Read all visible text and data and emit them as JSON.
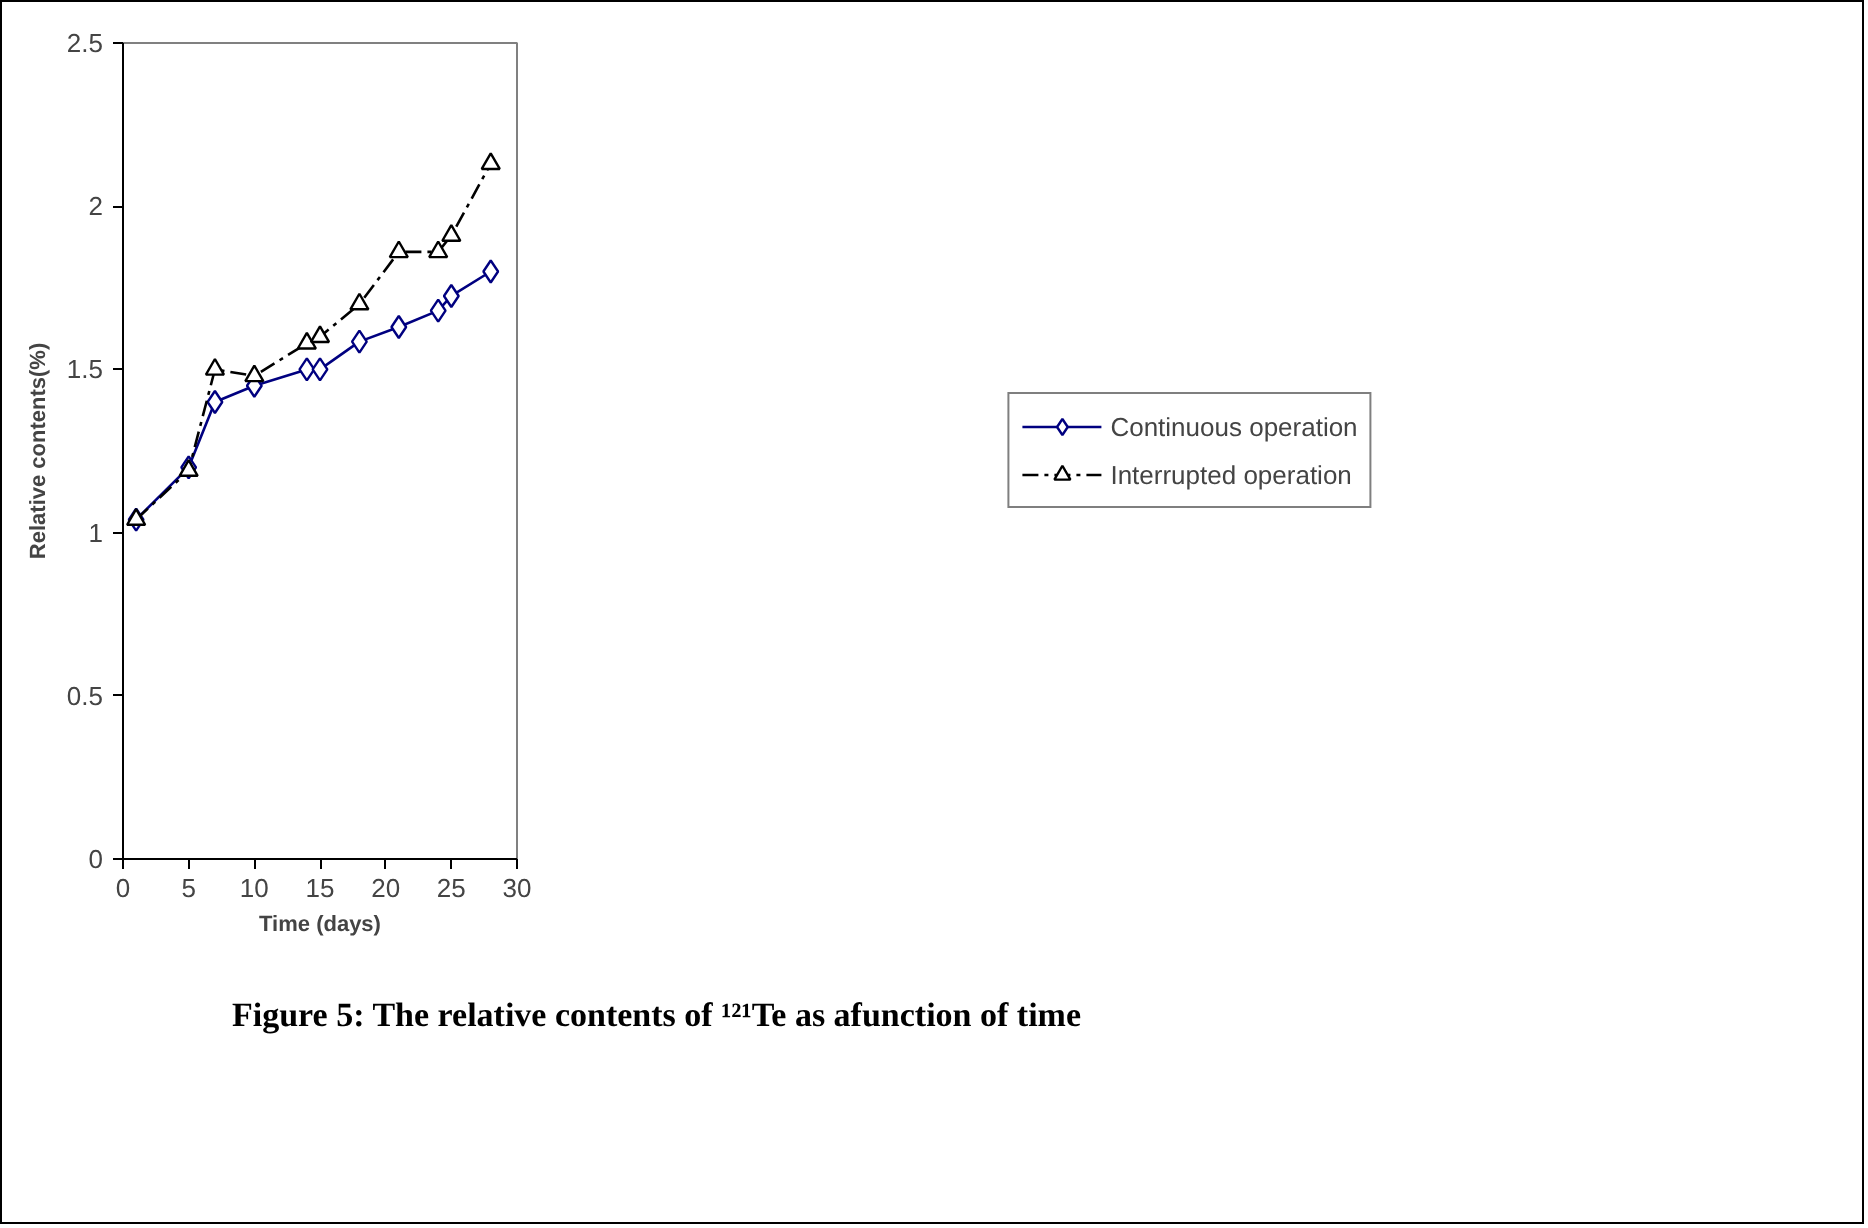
{
  "chart_data": {
    "type": "line",
    "xlabel": "Time (days)",
    "ylabel": "Relative contents(%)",
    "annotations": [
      "Figure 5: The relative contents of ¹²¹Te as afunction of time"
    ],
    "x": [
      1,
      5,
      7,
      10,
      14,
      15,
      18,
      21,
      24,
      25,
      28
    ],
    "series": [
      {
        "name": "Continuous operation",
        "color": "#000080",
        "values": [
          1.04,
          1.2,
          1.4,
          1.45,
          1.5,
          1.5,
          1.585,
          1.63,
          1.68,
          1.725,
          1.8
        ],
        "marker": "diamond",
        "line_style": "solid"
      },
      {
        "name": "Interrupted operation",
        "color": "#000000",
        "values": [
          1.04,
          1.19,
          1.5,
          1.48,
          1.58,
          1.6,
          1.7,
          1.86,
          1.86,
          1.91,
          2.13
        ],
        "marker": "triangle",
        "line_style": "dashed"
      }
    ],
    "xlim": [
      0,
      30
    ],
    "xticks": [
      0,
      5,
      10,
      15,
      20,
      25,
      30
    ],
    "ylim": [
      0,
      2.5
    ],
    "yticks": [
      0,
      0.5,
      1,
      1.5,
      2,
      2.5
    ],
    "grid": false,
    "legend": "right"
  }
}
